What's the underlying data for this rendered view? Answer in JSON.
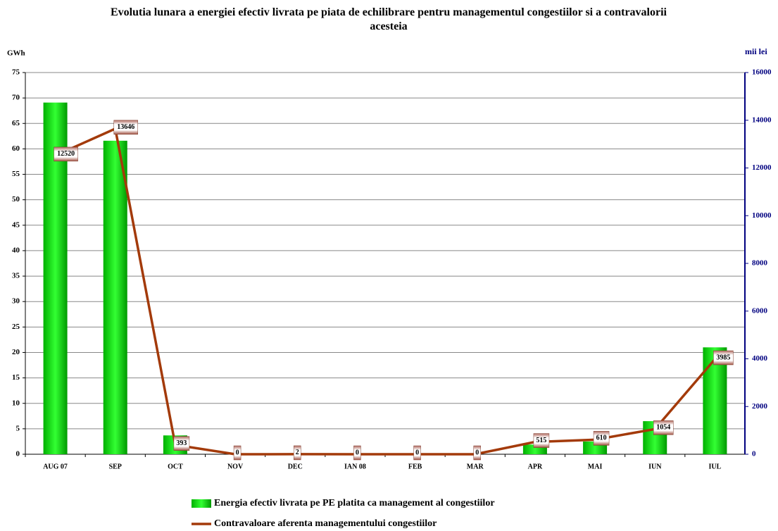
{
  "chart_data": {
    "type": "bar-line",
    "title": "Evolutia lunara a energiei efectiv livrata pe piata de echilibrare pentru managementul congestiilor si a contravalorii acesteia",
    "y_label": "GWh",
    "y2_label": "mii lei",
    "categories": [
      "AUG 07",
      "SEP",
      "OCT",
      "NOV",
      "DEC",
      "IAN 08",
      "FEB",
      "MAR",
      "APR",
      "MAI",
      "IUN",
      "IUL"
    ],
    "series": [
      {
        "name": "Energia efectiv livrata pe PE platita ca management al congestiilor",
        "type": "bar",
        "color": "#00cc00",
        "values": [
          69.1,
          61.6,
          3.7,
          0,
          0,
          0,
          0,
          0,
          1.9,
          2.5,
          6.5,
          21.0
        ]
      },
      {
        "name": "Contravaloare aferenta managementului congestiilor",
        "type": "line",
        "axis": "y2",
        "color": "#a33a0a",
        "values": [
          12520,
          13646,
          393,
          0,
          2,
          0,
          0,
          0,
          515,
          610,
          1054,
          3985
        ]
      }
    ],
    "ylim": [
      0,
      75
    ],
    "yticks": [
      0,
      5,
      10,
      15,
      20,
      25,
      30,
      35,
      40,
      45,
      50,
      55,
      60,
      65,
      70,
      75
    ],
    "y2lim": [
      0,
      16000
    ],
    "y2ticks": [
      0,
      2000,
      4000,
      6000,
      8000,
      10000,
      12000,
      14000,
      16000
    ],
    "grid": true,
    "legend": "bottom"
  }
}
